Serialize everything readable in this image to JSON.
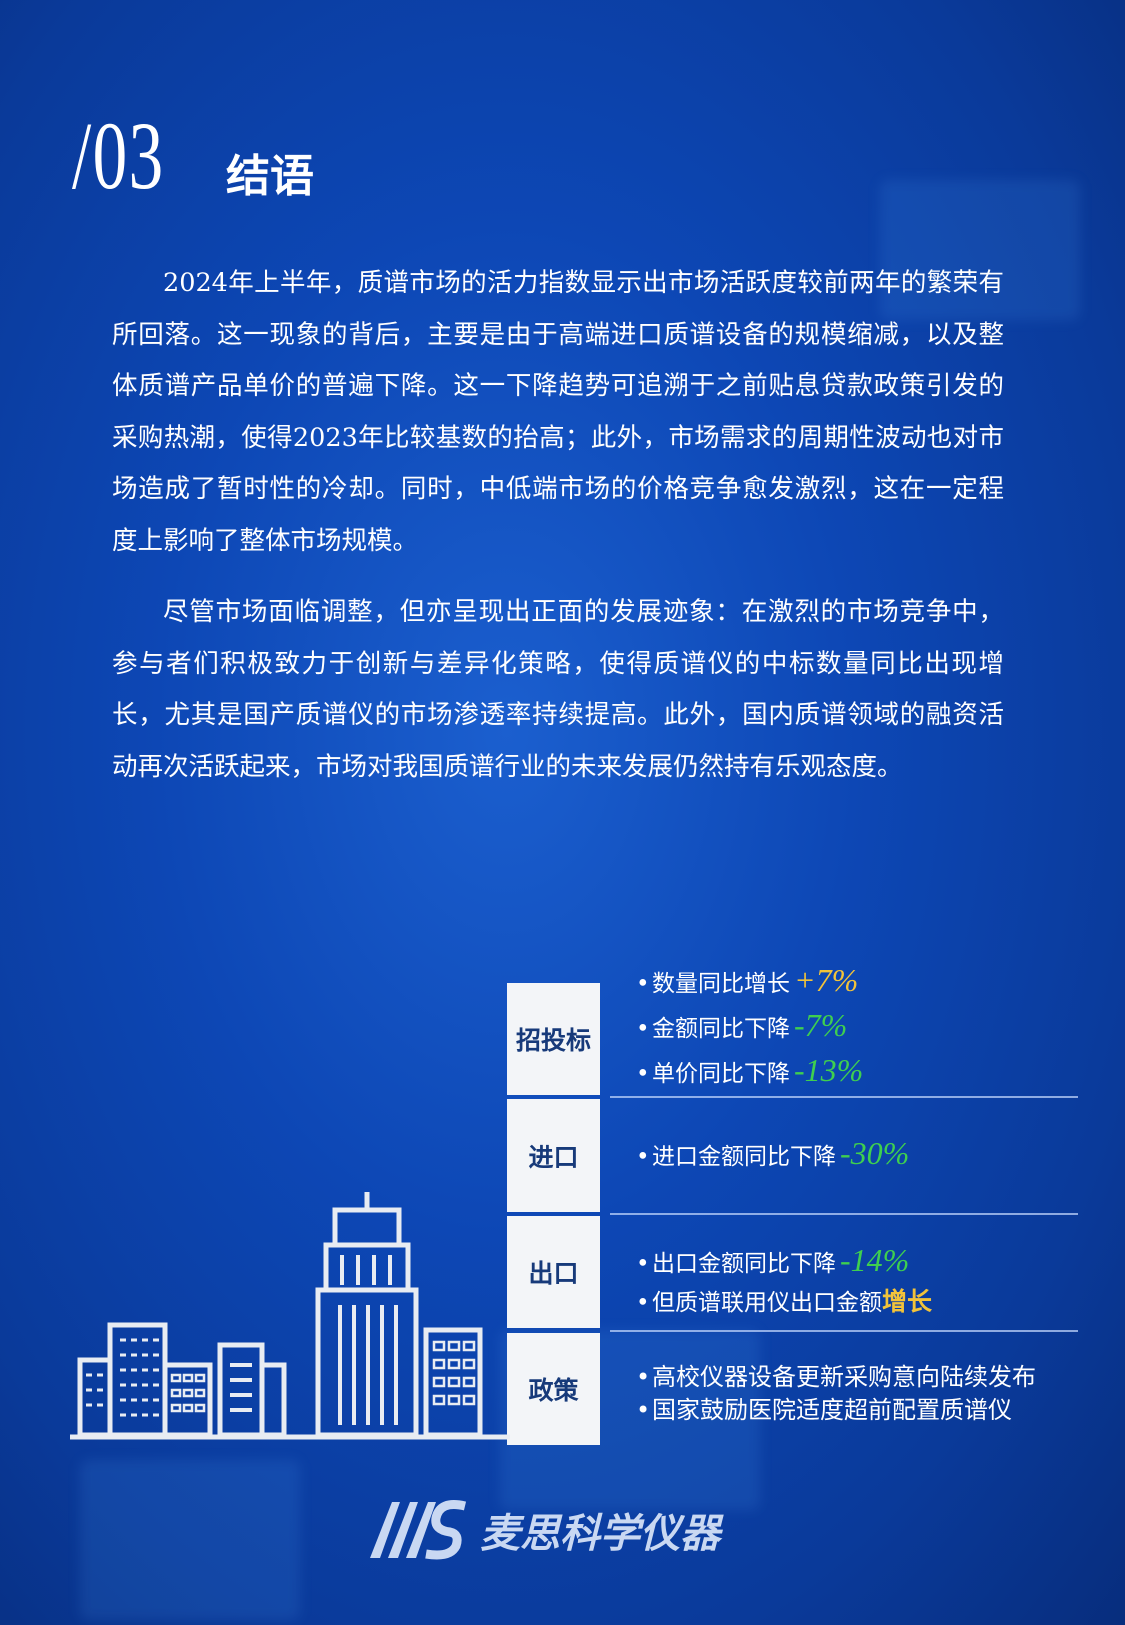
{
  "header": {
    "number": "/03",
    "title": "结语"
  },
  "paragraphs": [
    "2024年上半年，质谱市场的活力指数显示出市场活跃度较前两年的繁荣有所回落。这一现象的背后，主要是由于高端进口质谱设备的规模缩减，以及整体质谱产品单价的普遍下降。这一下降趋势可追溯于之前贴息贷款政策引发的采购热潮，使得2023年比较基数的抬高；此外，市场需求的周期性波动也对市场造成了暂时性的冷却。同时，中低端市场的价格竞争愈发激烈，这在一定程度上影响了整体市场规模。",
    "尽管市场面临调整，但亦呈现出正面的发展迹象：在激烈的市场竞争中，参与者们积极致力于创新与差异化策略，使得质谱仪的中标数量同比出现增长，尤其是国产质谱仪的市场渗透率持续提高。此外，国内质谱领域的融资活动再次活跃起来，市场对我国质谱行业的未来发展仍然持有乐观态度。"
  ],
  "summary": [
    {
      "label": "招投标",
      "items": [
        {
          "text": "数量同比增长",
          "value": "+7%",
          "color": "#f2c33a"
        },
        {
          "text": "金额同比下降",
          "value": "-7%",
          "color": "#3fcf4f"
        },
        {
          "text": "单价同比下降",
          "value": "-13%",
          "color": "#3fcf4f"
        }
      ]
    },
    {
      "label": "进口",
      "items": [
        {
          "text": "进口金额同比下降",
          "value": "-30%",
          "color": "#3fcf4f"
        }
      ]
    },
    {
      "label": "出口",
      "items": [
        {
          "text": "出口金额同比下降",
          "value": "-14%",
          "color": "#3fcf4f"
        },
        {
          "text": "但质谱联用仪出口金额",
          "value": "增长",
          "color": "#f2c33a"
        }
      ]
    },
    {
      "label": "政策",
      "items": [
        {
          "text": "高校仪器设备更新采购意向陆续发布",
          "value": ""
        },
        {
          "text": "国家鼓励医院适度超前配置质谱仪",
          "value": ""
        }
      ]
    }
  ],
  "bullet": "•",
  "logo": {
    "mark": "MS",
    "name": "麦思科学仪器"
  }
}
